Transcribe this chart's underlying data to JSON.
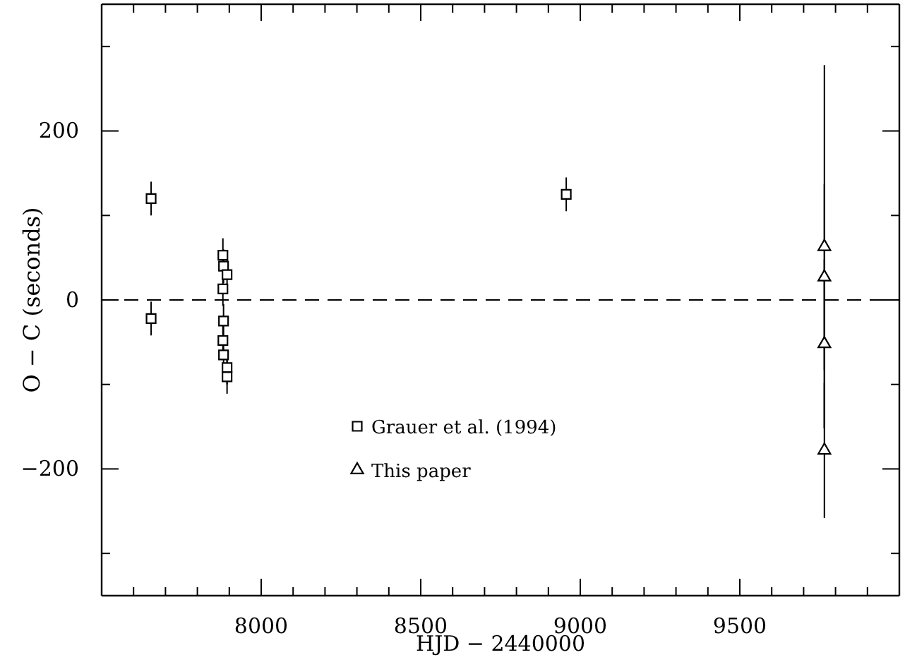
{
  "chart_data": {
    "type": "scatter",
    "xlabel": "HJD − 2440000",
    "ylabel": "O − C (seconds)",
    "xlim": [
      7500,
      10000
    ],
    "ylim": [
      -350,
      350
    ],
    "xticks": [
      {
        "value": 7600,
        "label": null
      },
      {
        "value": 7700,
        "label": null
      },
      {
        "value": 7800,
        "label": null
      },
      {
        "value": 7900,
        "label": null
      },
      8000,
      {
        "value": 8100,
        "label": null
      },
      {
        "value": 8200,
        "label": null
      },
      {
        "value": 8300,
        "label": null
      },
      {
        "value": 8400,
        "label": null
      },
      8500,
      {
        "value": 8600,
        "label": null
      },
      {
        "value": 8700,
        "label": null
      },
      {
        "value": 8800,
        "label": null
      },
      {
        "value": 8900,
        "label": null
      },
      9000,
      {
        "value": 9100,
        "label": null
      },
      {
        "value": 9200,
        "label": null
      },
      {
        "value": 9300,
        "label": null
      },
      {
        "value": 9400,
        "label": null
      },
      9500,
      {
        "value": 9600,
        "label": null
      },
      {
        "value": 9700,
        "label": null
      },
      {
        "value": 9800,
        "label": null
      },
      {
        "value": 9900,
        "label": null
      }
    ],
    "yticks": [
      {
        "value": -300,
        "label": null
      },
      {
        "value": -200,
        "label": "−200"
      },
      {
        "value": -100,
        "label": null
      },
      0,
      {
        "value": 100,
        "label": null
      },
      200,
      {
        "value": 300,
        "label": null
      }
    ],
    "grid": false,
    "legend": "bottom left",
    "ref_lines": [
      {
        "axis": "y",
        "value": 0,
        "line_style": "dashed",
        "color": "#000000"
      }
    ],
    "series": [
      {
        "name": "Grauer et al. (1994)",
        "color": "#000000",
        "marker": "square",
        "x": [
          7655,
          7655,
          7880,
          7882,
          7893,
          7880,
          7882,
          7880,
          7882,
          7893,
          7893,
          8956
        ],
        "values": [
          120,
          -22,
          53,
          40,
          30,
          13,
          -25,
          -48,
          -65,
          -80,
          -91,
          125
        ],
        "errors": [
          20,
          20,
          20,
          20,
          20,
          20,
          20,
          20,
          20,
          20,
          20,
          20
        ]
      },
      {
        "name": "This paper",
        "color": "#000000",
        "marker": "triangle",
        "x": [
          9765,
          9765,
          9765,
          9765
        ],
        "values": [
          63,
          27,
          -52,
          -178
        ],
        "errors": [
          215,
          110,
          100,
          80
        ]
      }
    ]
  }
}
